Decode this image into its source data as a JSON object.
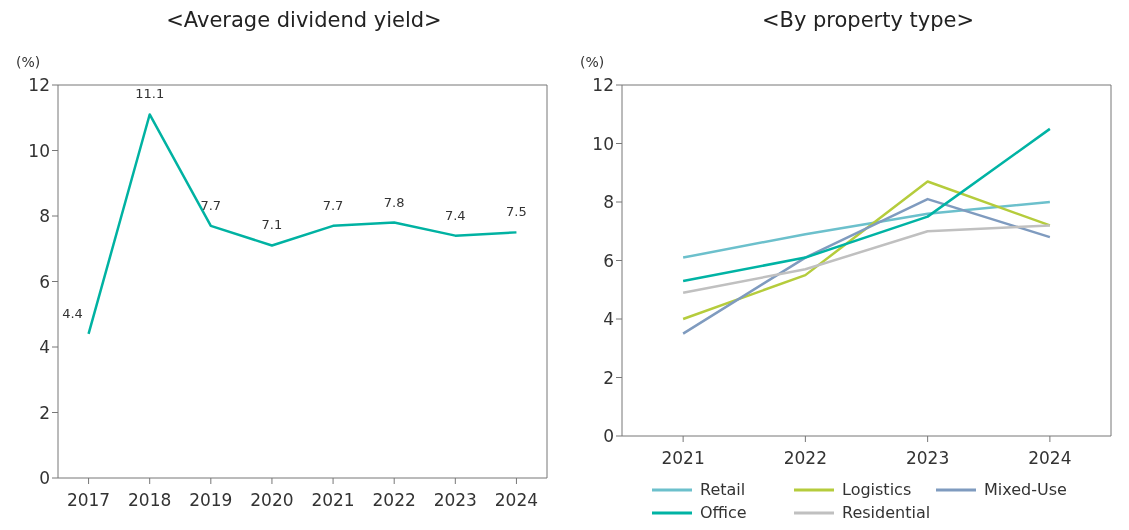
{
  "chart_data": [
    {
      "type": "line",
      "title": "<Average dividend yield>",
      "ylabel": "(%)",
      "categories": [
        "2017",
        "2018",
        "2019",
        "2020",
        "2021",
        "2022",
        "2023",
        "2024"
      ],
      "series": [
        {
          "color": "#00b2a2",
          "values": [
            4.4,
            11.1,
            7.7,
            7.1,
            7.7,
            7.8,
            7.4,
            7.5
          ]
        }
      ],
      "ylim": [
        0,
        12
      ],
      "yticks": [
        0,
        2,
        4,
        6,
        8,
        10,
        12
      ],
      "grid": false,
      "legend": false,
      "marker": "none",
      "line_style": "solid",
      "data_labels": true
    },
    {
      "type": "line",
      "title": "<By property type>",
      "ylabel": "(%)",
      "categories": [
        "2021",
        "2022",
        "2023",
        "2024"
      ],
      "series": [
        {
          "name": "Retail",
          "color": "#6cc0cc",
          "values": [
            6.1,
            6.9,
            7.6,
            8.0
          ]
        },
        {
          "name": "Logistics",
          "color": "#b5cc3c",
          "values": [
            4.0,
            5.5,
            8.7,
            7.2
          ]
        },
        {
          "name": "Mixed-Use",
          "color": "#7f9bbf",
          "values": [
            3.5,
            6.1,
            8.1,
            6.8
          ]
        },
        {
          "name": "Office",
          "color": "#00b3a4",
          "values": [
            5.3,
            6.1,
            7.5,
            10.5
          ]
        },
        {
          "name": "Residential",
          "color": "#c0c0c0",
          "values": [
            4.9,
            5.7,
            7.0,
            7.2
          ]
        }
      ],
      "ylim": [
        0,
        12
      ],
      "yticks": [
        0,
        2,
        4,
        6,
        8,
        10,
        12
      ],
      "grid": false,
      "legend": "bottom",
      "marker": "none",
      "line_style": "solid"
    }
  ]
}
